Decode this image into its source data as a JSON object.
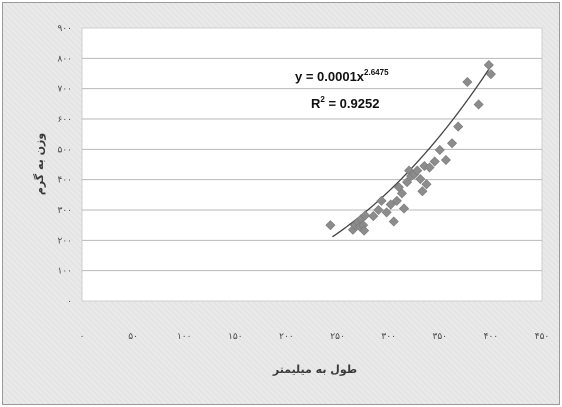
{
  "chart_data": {
    "type": "scatter",
    "title": "",
    "xlabel": "طول به میلیمتر",
    "ylabel": "وزن به گرم",
    "xlim": [
      0,
      450
    ],
    "ylim": [
      0,
      900
    ],
    "x_ticks": [
      0,
      50,
      100,
      150,
      200,
      250,
      300,
      350,
      400,
      450
    ],
    "x_tick_labels": [
      "۰",
      "۵۰",
      "۱۰۰",
      "۱۵۰",
      "۲۰۰",
      "۲۵۰",
      "۳۰۰",
      "۳۵۰",
      "۴۰۰",
      "۴۵۰"
    ],
    "y_ticks": [
      0,
      100,
      200,
      300,
      400,
      500,
      600,
      700,
      800,
      900
    ],
    "y_tick_labels": [
      "۰",
      "۱۰۰",
      "۲۰۰",
      "۳۰۰",
      "۴۰۰",
      "۵۰۰",
      "۶۰۰",
      "۷۰۰",
      "۸۰۰",
      "۹۰۰"
    ],
    "grid": "horizontal",
    "marker_color": "#8c8c8c",
    "trendline_color": "#444444",
    "trendline": {
      "type": "power",
      "coefficient": 0.0001,
      "exponent": 2.6475,
      "x_range": [
        245,
        400
      ],
      "equation_label": "y = 0.0001x",
      "equation_exponent": "2.6475",
      "r2_label_prefix": "R",
      "r2_label_sup": "2",
      "r2_label_suffix": " = 0.9252"
    },
    "points": [
      {
        "x": 243,
        "y": 250
      },
      {
        "x": 265,
        "y": 235
      },
      {
        "x": 267,
        "y": 250
      },
      {
        "x": 270,
        "y": 260
      },
      {
        "x": 272,
        "y": 245
      },
      {
        "x": 273,
        "y": 270
      },
      {
        "x": 275,
        "y": 250
      },
      {
        "x": 276,
        "y": 232
      },
      {
        "x": 277,
        "y": 282
      },
      {
        "x": 285,
        "y": 280
      },
      {
        "x": 290,
        "y": 300
      },
      {
        "x": 293,
        "y": 330
      },
      {
        "x": 298,
        "y": 292
      },
      {
        "x": 302,
        "y": 318
      },
      {
        "x": 305,
        "y": 262
      },
      {
        "x": 308,
        "y": 330
      },
      {
        "x": 310,
        "y": 375
      },
      {
        "x": 313,
        "y": 355
      },
      {
        "x": 315,
        "y": 305
      },
      {
        "x": 318,
        "y": 392
      },
      {
        "x": 320,
        "y": 430
      },
      {
        "x": 322,
        "y": 412
      },
      {
        "x": 325,
        "y": 418
      },
      {
        "x": 328,
        "y": 430
      },
      {
        "x": 331,
        "y": 402
      },
      {
        "x": 333,
        "y": 362
      },
      {
        "x": 335,
        "y": 445
      },
      {
        "x": 337,
        "y": 385
      },
      {
        "x": 340,
        "y": 440
      },
      {
        "x": 345,
        "y": 460
      },
      {
        "x": 350,
        "y": 498
      },
      {
        "x": 356,
        "y": 465
      },
      {
        "x": 362,
        "y": 520
      },
      {
        "x": 368,
        "y": 575
      },
      {
        "x": 377,
        "y": 722
      },
      {
        "x": 388,
        "y": 648
      },
      {
        "x": 398,
        "y": 778
      },
      {
        "x": 400,
        "y": 748
      }
    ]
  }
}
